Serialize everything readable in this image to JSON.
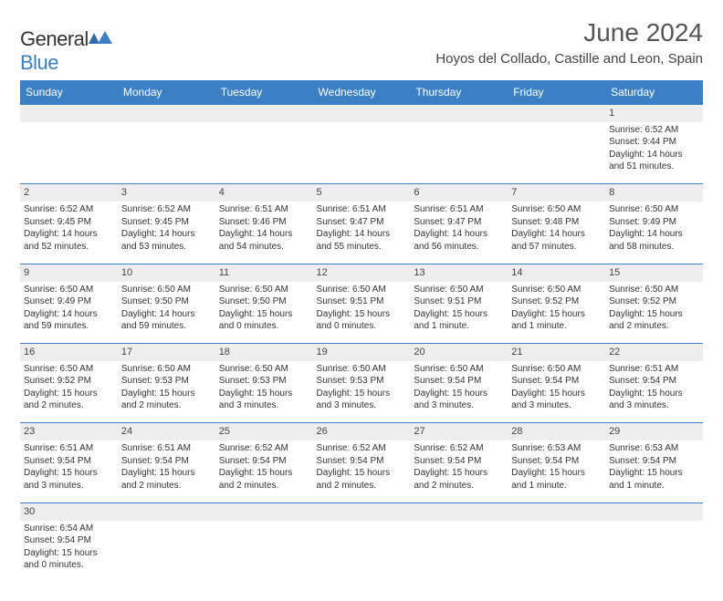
{
  "logo": {
    "text1": "General",
    "text2": "Blue"
  },
  "title": "June 2024",
  "location": "Hoyos del Collado, Castille and Leon, Spain",
  "colors": {
    "header_bg": "#3b7fc4",
    "header_text": "#ffffff",
    "daynum_bg": "#eeeeee",
    "border": "#3b7fc4",
    "text": "#333333",
    "title_text": "#555555"
  },
  "daysOfWeek": [
    "Sunday",
    "Monday",
    "Tuesday",
    "Wednesday",
    "Thursday",
    "Friday",
    "Saturday"
  ],
  "weeks": [
    [
      null,
      null,
      null,
      null,
      null,
      null,
      {
        "n": "1",
        "sr": "6:52 AM",
        "ss": "9:44 PM",
        "dl": "14 hours and 51 minutes."
      }
    ],
    [
      {
        "n": "2",
        "sr": "6:52 AM",
        "ss": "9:45 PM",
        "dl": "14 hours and 52 minutes."
      },
      {
        "n": "3",
        "sr": "6:52 AM",
        "ss": "9:45 PM",
        "dl": "14 hours and 53 minutes."
      },
      {
        "n": "4",
        "sr": "6:51 AM",
        "ss": "9:46 PM",
        "dl": "14 hours and 54 minutes."
      },
      {
        "n": "5",
        "sr": "6:51 AM",
        "ss": "9:47 PM",
        "dl": "14 hours and 55 minutes."
      },
      {
        "n": "6",
        "sr": "6:51 AM",
        "ss": "9:47 PM",
        "dl": "14 hours and 56 minutes."
      },
      {
        "n": "7",
        "sr": "6:50 AM",
        "ss": "9:48 PM",
        "dl": "14 hours and 57 minutes."
      },
      {
        "n": "8",
        "sr": "6:50 AM",
        "ss": "9:49 PM",
        "dl": "14 hours and 58 minutes."
      }
    ],
    [
      {
        "n": "9",
        "sr": "6:50 AM",
        "ss": "9:49 PM",
        "dl": "14 hours and 59 minutes."
      },
      {
        "n": "10",
        "sr": "6:50 AM",
        "ss": "9:50 PM",
        "dl": "14 hours and 59 minutes."
      },
      {
        "n": "11",
        "sr": "6:50 AM",
        "ss": "9:50 PM",
        "dl": "15 hours and 0 minutes."
      },
      {
        "n": "12",
        "sr": "6:50 AM",
        "ss": "9:51 PM",
        "dl": "15 hours and 0 minutes."
      },
      {
        "n": "13",
        "sr": "6:50 AM",
        "ss": "9:51 PM",
        "dl": "15 hours and 1 minute."
      },
      {
        "n": "14",
        "sr": "6:50 AM",
        "ss": "9:52 PM",
        "dl": "15 hours and 1 minute."
      },
      {
        "n": "15",
        "sr": "6:50 AM",
        "ss": "9:52 PM",
        "dl": "15 hours and 2 minutes."
      }
    ],
    [
      {
        "n": "16",
        "sr": "6:50 AM",
        "ss": "9:52 PM",
        "dl": "15 hours and 2 minutes."
      },
      {
        "n": "17",
        "sr": "6:50 AM",
        "ss": "9:53 PM",
        "dl": "15 hours and 2 minutes."
      },
      {
        "n": "18",
        "sr": "6:50 AM",
        "ss": "9:53 PM",
        "dl": "15 hours and 3 minutes."
      },
      {
        "n": "19",
        "sr": "6:50 AM",
        "ss": "9:53 PM",
        "dl": "15 hours and 3 minutes."
      },
      {
        "n": "20",
        "sr": "6:50 AM",
        "ss": "9:54 PM",
        "dl": "15 hours and 3 minutes."
      },
      {
        "n": "21",
        "sr": "6:50 AM",
        "ss": "9:54 PM",
        "dl": "15 hours and 3 minutes."
      },
      {
        "n": "22",
        "sr": "6:51 AM",
        "ss": "9:54 PM",
        "dl": "15 hours and 3 minutes."
      }
    ],
    [
      {
        "n": "23",
        "sr": "6:51 AM",
        "ss": "9:54 PM",
        "dl": "15 hours and 3 minutes."
      },
      {
        "n": "24",
        "sr": "6:51 AM",
        "ss": "9:54 PM",
        "dl": "15 hours and 2 minutes."
      },
      {
        "n": "25",
        "sr": "6:52 AM",
        "ss": "9:54 PM",
        "dl": "15 hours and 2 minutes."
      },
      {
        "n": "26",
        "sr": "6:52 AM",
        "ss": "9:54 PM",
        "dl": "15 hours and 2 minutes."
      },
      {
        "n": "27",
        "sr": "6:52 AM",
        "ss": "9:54 PM",
        "dl": "15 hours and 2 minutes."
      },
      {
        "n": "28",
        "sr": "6:53 AM",
        "ss": "9:54 PM",
        "dl": "15 hours and 1 minute."
      },
      {
        "n": "29",
        "sr": "6:53 AM",
        "ss": "9:54 PM",
        "dl": "15 hours and 1 minute."
      }
    ],
    [
      {
        "n": "30",
        "sr": "6:54 AM",
        "ss": "9:54 PM",
        "dl": "15 hours and 0 minutes."
      },
      null,
      null,
      null,
      null,
      null,
      null
    ]
  ],
  "labels": {
    "sunrise": "Sunrise: ",
    "sunset": "Sunset: ",
    "daylight": "Daylight: "
  }
}
